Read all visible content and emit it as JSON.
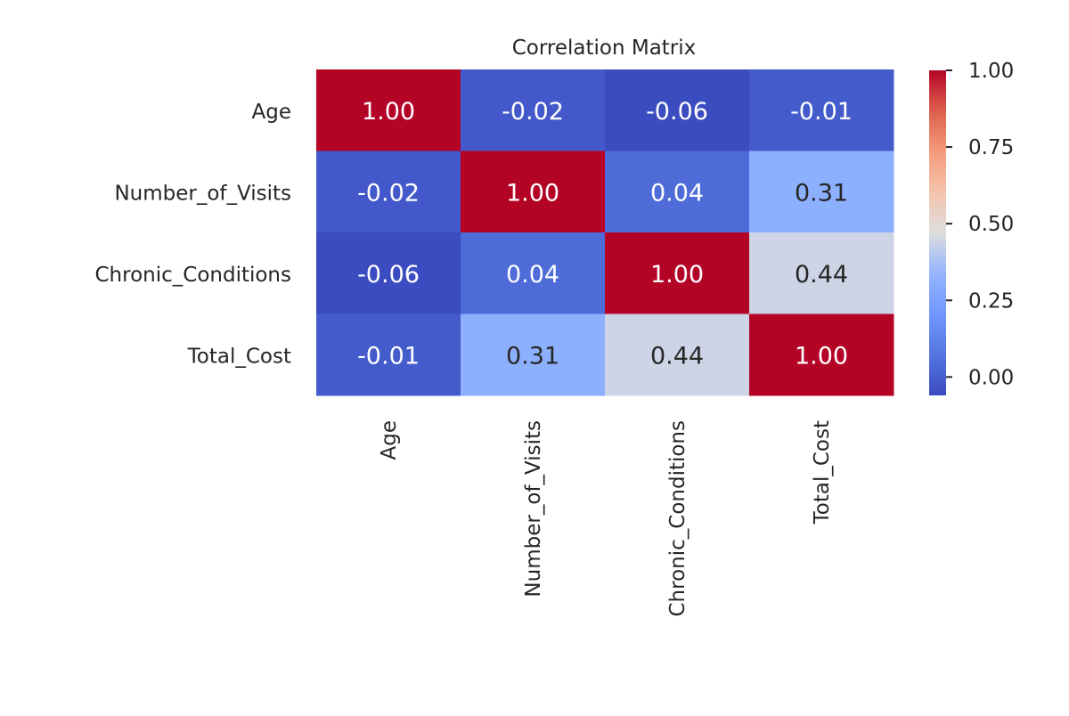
{
  "chart_data": {
    "type": "heatmap",
    "title": "Correlation Matrix",
    "row_labels": [
      "Age",
      "Number_of_Visits",
      "Chronic_Conditions",
      "Total_Cost"
    ],
    "col_labels": [
      "Age",
      "Number_of_Visits",
      "Chronic_Conditions",
      "Total_Cost"
    ],
    "values": [
      [
        1.0,
        -0.02,
        -0.06,
        -0.01
      ],
      [
        -0.02,
        1.0,
        0.04,
        0.31
      ],
      [
        -0.06,
        0.04,
        1.0,
        0.44
      ],
      [
        -0.01,
        0.31,
        0.44,
        1.0
      ]
    ],
    "colormap": "coolwarm",
    "colorbar": {
      "range": [
        -0.06,
        1.0
      ],
      "ticks": [
        0.0,
        0.25,
        0.5,
        0.75,
        1.0
      ],
      "tick_labels": [
        "0.00",
        "0.25",
        "0.50",
        "0.75",
        "1.00"
      ]
    },
    "annotation_format": "0.00"
  }
}
